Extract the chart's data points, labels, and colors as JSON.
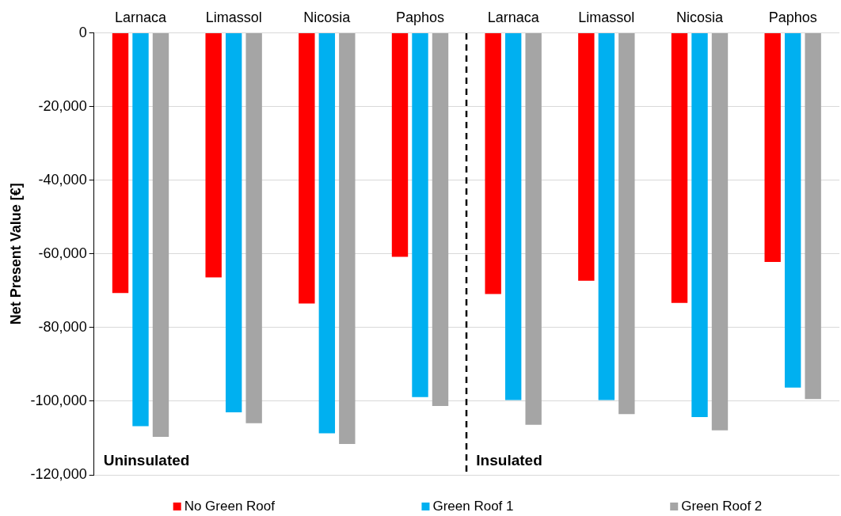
{
  "chart_data": {
    "type": "bar",
    "ylabel": "Net Present Value [€]",
    "categories": [
      "Larnaca",
      "Limassol",
      "Nicosia",
      "Paphos",
      "Larnaca",
      "Limassol",
      "Nicosia",
      "Paphos"
    ],
    "series": [
      {
        "name": "No Green Roof",
        "color": "#ff0000",
        "values": [
          -70600,
          -66400,
          -73500,
          -60800,
          -70900,
          -67300,
          -73300,
          -62200
        ]
      },
      {
        "name": "Green Roof 1",
        "color": "#00b0f0",
        "values": [
          -106800,
          -103000,
          -108700,
          -98900,
          -99700,
          -99700,
          -104300,
          -96300
        ]
      },
      {
        "name": "Green Roof 2",
        "color": "#a5a5a5",
        "values": [
          -109700,
          -106000,
          -111600,
          -101300,
          -106400,
          -103500,
          -107900,
          -99400
        ]
      }
    ],
    "ylim": [
      -120000,
      0
    ],
    "yticks": [
      {
        "value": -120000,
        "label": "-120,000"
      },
      {
        "value": -100000,
        "label": "-100,000"
      },
      {
        "value": -80000,
        "label": "-80,000"
      },
      {
        "value": -60000,
        "label": "-60,000"
      },
      {
        "value": -40000,
        "label": "-40,000"
      },
      {
        "value": -20000,
        "label": "-20,000"
      },
      0
    ],
    "grid": "y",
    "legend": "bottom",
    "annotations": [
      "Uninsulated",
      "Insulated"
    ]
  }
}
